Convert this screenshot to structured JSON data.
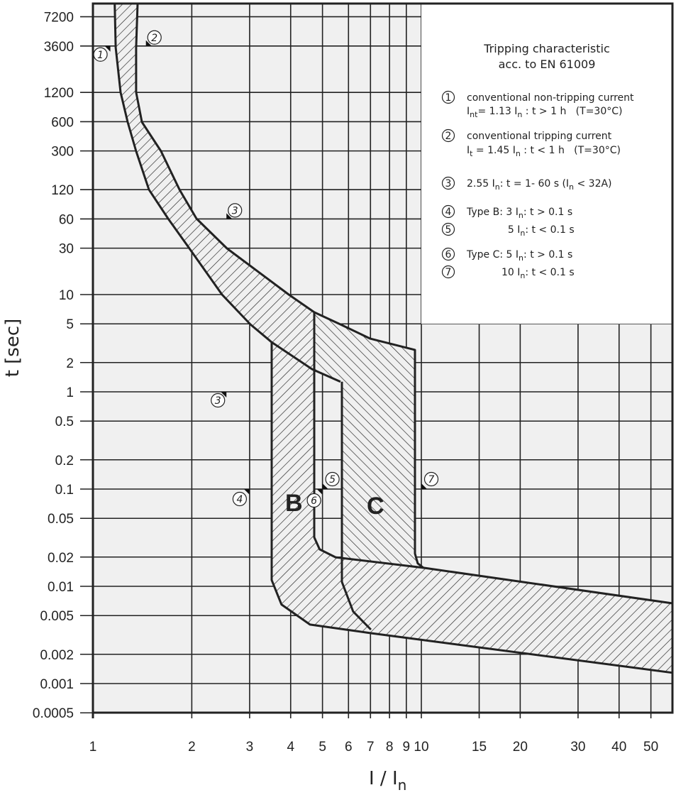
{
  "chart_data": {
    "type": "line",
    "title": [
      "Tripping characteristic",
      "acc. to EN 61009"
    ],
    "xlabel": {
      "main": "I / I",
      "sub": "n"
    },
    "ylabel": "t [sec]",
    "xscale": "log",
    "yscale": "log",
    "xlim": [
      1,
      58
    ],
    "ylim": [
      0.0005,
      10000
    ],
    "grid": true,
    "legend_placement": "top-right",
    "xticks": [
      1,
      2,
      3,
      4,
      5,
      6,
      7,
      8,
      9,
      10,
      15,
      20,
      30,
      40,
      50
    ],
    "yticks": [
      7200,
      3600,
      1200,
      600,
      300,
      120,
      60,
      30,
      10,
      5,
      2,
      1,
      0.5,
      0.2,
      0.1,
      0.05,
      0.02,
      0.01,
      0.005,
      0.002,
      0.001,
      0.0005
    ],
    "colors": {
      "background": "#f0f0f0",
      "legend_background": "#ffffff",
      "ink": "#222222"
    },
    "regions": [
      {
        "label": "",
        "hatch": "/",
        "points": [
          [
            1.165,
            9840
          ],
          [
            1.173,
            3467
          ],
          [
            1.214,
            1202
          ],
          [
            1.276,
            594
          ],
          [
            1.354,
            298
          ],
          [
            1.481,
            120
          ],
          [
            1.694,
            60.4
          ],
          [
            1.967,
            29.8
          ],
          [
            2.472,
            10
          ],
          [
            3.016,
            4.94
          ],
          [
            3.502,
            3.24
          ],
          [
            4.72,
            1.7
          ],
          [
            4.72,
            6.58
          ],
          [
            3.947,
            10
          ],
          [
            2.56,
            29.8
          ],
          [
            2.067,
            60.4
          ],
          [
            1.835,
            120
          ],
          [
            1.612,
            298
          ],
          [
            1.41,
            594
          ],
          [
            1.354,
            1202
          ],
          [
            1.354,
            3467
          ],
          [
            1.368,
            9840
          ]
        ]
      },
      {
        "label": "B",
        "hatch": "/",
        "points": [
          [
            3.502,
            3.24
          ],
          [
            3.502,
            0.0116
          ],
          [
            3.75,
            0.0065
          ],
          [
            4.58,
            0.00404
          ],
          [
            7.02,
            0.0033
          ],
          [
            58.2,
            0.00129
          ],
          [
            58.2,
            0.00668
          ],
          [
            10.15,
            0.0155
          ],
          [
            5.48,
            0.0199
          ],
          [
            4.9,
            0.024
          ],
          [
            4.72,
            0.0319
          ],
          [
            4.72,
            1.7
          ]
        ]
      },
      {
        "label": "C",
        "hatch": "\\",
        "points": [
          [
            4.72,
            6.58
          ],
          [
            5.67,
            4.94
          ],
          [
            6.99,
            3.52
          ],
          [
            9.56,
            2.7
          ],
          [
            9.56,
            0.0217
          ],
          [
            9.75,
            0.0172
          ],
          [
            10.15,
            0.0155
          ],
          [
            5.73,
            0.0199
          ],
          [
            5.73,
            1.27
          ],
          [
            4.72,
            1.7
          ]
        ]
      }
    ],
    "outlines": [
      [
        [
          1.165,
          9840
        ],
        [
          1.173,
          3467
        ],
        [
          1.214,
          1202
        ],
        [
          1.276,
          594
        ],
        [
          1.354,
          298
        ],
        [
          1.481,
          120
        ],
        [
          1.694,
          60.4
        ],
        [
          1.967,
          29.8
        ],
        [
          2.472,
          10
        ],
        [
          3.016,
          4.94
        ],
        [
          3.502,
          3.24
        ],
        [
          4.65,
          1.71
        ],
        [
          5.67,
          1.27
        ]
      ],
      [
        [
          1.368,
          9840
        ],
        [
          1.354,
          3467
        ],
        [
          1.354,
          1202
        ],
        [
          1.41,
          594
        ],
        [
          1.612,
          298
        ],
        [
          1.835,
          120
        ],
        [
          2.067,
          60.4
        ],
        [
          2.56,
          29.8
        ],
        [
          3.947,
          10
        ],
        [
          4.72,
          6.58
        ],
        [
          5.67,
          4.94
        ],
        [
          6.99,
          3.52
        ],
        [
          9.56,
          2.7
        ],
        [
          9.56,
          0.0217
        ],
        [
          9.75,
          0.0172
        ],
        [
          10.15,
          0.0155
        ],
        [
          58.2,
          0.00668
        ]
      ],
      [
        [
          3.502,
          3.24
        ],
        [
          3.502,
          0.0116
        ],
        [
          3.75,
          0.0065
        ],
        [
          4.58,
          0.00404
        ],
        [
          7.02,
          0.0033
        ],
        [
          58.2,
          0.00129
        ]
      ],
      [
        [
          4.72,
          6.58
        ],
        [
          4.72,
          0.0319
        ],
        [
          4.9,
          0.024
        ],
        [
          5.48,
          0.0199
        ],
        [
          10.15,
          0.0155
        ]
      ],
      [
        [
          5.73,
          1.27
        ],
        [
          5.73,
          0.0111
        ],
        [
          6.2,
          0.0055
        ],
        [
          7.02,
          0.00359
        ]
      ]
    ],
    "markers": [
      {
        "num": "1",
        "I": 1.13,
        "t": 3600
      },
      {
        "num": "2",
        "I": 1.45,
        "t": 3600
      },
      {
        "num": "3",
        "I": 2.55,
        "t": 60
      },
      {
        "num": "3",
        "I": 2.55,
        "t": 1
      },
      {
        "num": "4",
        "I": 3,
        "t": 0.1
      },
      {
        "num": "5",
        "I": 5,
        "t": 0.1
      },
      {
        "num": "6",
        "I": 5,
        "t": 0.1
      },
      {
        "num": "7",
        "I": 10,
        "t": 0.1
      }
    ],
    "legend": [
      {
        "num": "1",
        "lines": [
          [
            {
              "t": "conventional non-tripping current"
            }
          ],
          [
            {
              "t": "I"
            },
            {
              "sub": "nt"
            },
            {
              "t": "= 1.13 I"
            },
            {
              "sub": "n"
            },
            {
              "t": " : t > 1 h   (T=30°C)"
            }
          ]
        ]
      },
      {
        "num": "2",
        "lines": [
          [
            {
              "t": "conventional tripping current"
            }
          ],
          [
            {
              "t": "I"
            },
            {
              "sub": "t"
            },
            {
              "t": " = 1.45 I"
            },
            {
              "sub": "n"
            },
            {
              "t": " : t < 1 h   (T=30°C)"
            }
          ]
        ]
      },
      {
        "num": "3",
        "lines": [
          [
            {
              "t": "2.55 I"
            },
            {
              "sub": "n"
            },
            {
              "t": ": t = 1- 60 s (I"
            },
            {
              "sub": "n"
            },
            {
              "t": " < 32A)"
            }
          ]
        ]
      },
      {
        "num": "4",
        "lines": [
          [
            {
              "t": "Type B: 3 I"
            },
            {
              "sub": "n"
            },
            {
              "t": ": t > 0.1 s"
            }
          ]
        ]
      },
      {
        "num": "5",
        "lines": [
          [
            {
              "t": "             5 I"
            },
            {
              "sub": "n"
            },
            {
              "t": ": t < 0.1 s"
            }
          ]
        ]
      },
      {
        "num": "6",
        "lines": [
          [
            {
              "t": "Type C: 5 I"
            },
            {
              "sub": "n"
            },
            {
              "t": ": t > 0.1 s"
            }
          ]
        ]
      },
      {
        "num": "7",
        "lines": [
          [
            {
              "t": "           10 I"
            },
            {
              "sub": "n"
            },
            {
              "t": ": t < 0.1 s"
            }
          ]
        ]
      }
    ]
  }
}
